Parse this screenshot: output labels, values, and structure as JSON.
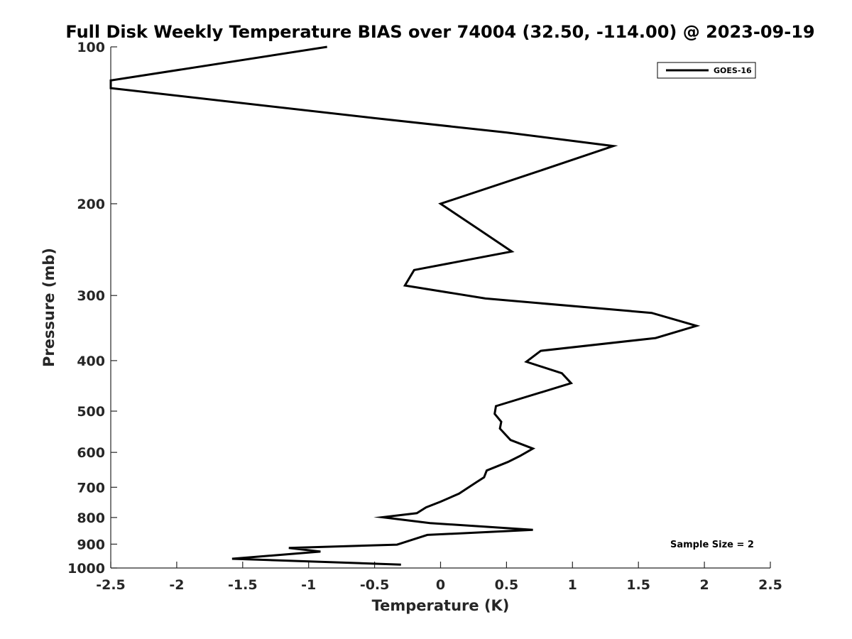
{
  "chart_data": {
    "type": "line",
    "title": "Full Disk Weekly Temperature BIAS over 74004 (32.50, -114.00) @ 2023-09-19",
    "xlabel": "Temperature (K)",
    "ylabel": "Pressure (mb)",
    "xlim": [
      -2.5,
      2.5
    ],
    "ylim": [
      100,
      1000
    ],
    "y_scale": "log",
    "y_reversed": true,
    "x_ticks": [
      -2.5,
      -2,
      -1.5,
      -1,
      -0.5,
      0,
      0.5,
      1,
      1.5,
      2,
      2.5
    ],
    "x_tick_labels": [
      "-2.5",
      "-2",
      "-1.5",
      "-1",
      "-0.5",
      "0",
      "0.5",
      "1",
      "1.5",
      "2",
      "2.5"
    ],
    "y_ticks": [
      100,
      200,
      300,
      400,
      500,
      600,
      700,
      800,
      900,
      1000
    ],
    "y_tick_labels": [
      "100",
      "200",
      "300",
      "400",
      "500",
      "600",
      "700",
      "800",
      "900",
      "1000"
    ],
    "grid": false,
    "legend_position": "top-right",
    "series": [
      {
        "name": "GOES-16",
        "color": "#000000",
        "points": [
          {
            "x": -0.86,
            "p": 100
          },
          {
            "x": -2.5,
            "p": 116
          },
          {
            "x": -2.5,
            "p": 120
          },
          {
            "x": -0.5,
            "p": 137
          },
          {
            "x": 0.5,
            "p": 146
          },
          {
            "x": 1.31,
            "p": 155
          },
          {
            "x": 0.72,
            "p": 174
          },
          {
            "x": 0.0,
            "p": 200
          },
          {
            "x": 0.28,
            "p": 223
          },
          {
            "x": 0.54,
            "p": 247
          },
          {
            "x": -0.2,
            "p": 268
          },
          {
            "x": -0.27,
            "p": 287
          },
          {
            "x": 0.34,
            "p": 304
          },
          {
            "x": 1.6,
            "p": 324
          },
          {
            "x": 1.94,
            "p": 343
          },
          {
            "x": 1.63,
            "p": 362
          },
          {
            "x": 0.76,
            "p": 383
          },
          {
            "x": 0.65,
            "p": 402
          },
          {
            "x": 0.92,
            "p": 423
          },
          {
            "x": 0.99,
            "p": 442
          },
          {
            "x": 0.42,
            "p": 489
          },
          {
            "x": 0.41,
            "p": 506
          },
          {
            "x": 0.46,
            "p": 524
          },
          {
            "x": 0.45,
            "p": 540
          },
          {
            "x": 0.53,
            "p": 568
          },
          {
            "x": 0.7,
            "p": 590
          },
          {
            "x": 0.6,
            "p": 610
          },
          {
            "x": 0.51,
            "p": 626
          },
          {
            "x": 0.35,
            "p": 650
          },
          {
            "x": 0.33,
            "p": 670
          },
          {
            "x": 0.27,
            "p": 685
          },
          {
            "x": 0.14,
            "p": 720
          },
          {
            "x": 0.0,
            "p": 746
          },
          {
            "x": -0.11,
            "p": 765
          },
          {
            "x": -0.18,
            "p": 785
          },
          {
            "x": -0.44,
            "p": 799
          },
          {
            "x": -0.08,
            "p": 820
          },
          {
            "x": 0.7,
            "p": 845
          },
          {
            "x": -0.1,
            "p": 864
          },
          {
            "x": -0.33,
            "p": 902
          },
          {
            "x": -1.15,
            "p": 915
          },
          {
            "x": -0.91,
            "p": 930
          },
          {
            "x": -1.58,
            "p": 960
          },
          {
            "x": -0.3,
            "p": 985
          }
        ]
      }
    ],
    "annotations": [
      "Sample Size = 2"
    ]
  }
}
